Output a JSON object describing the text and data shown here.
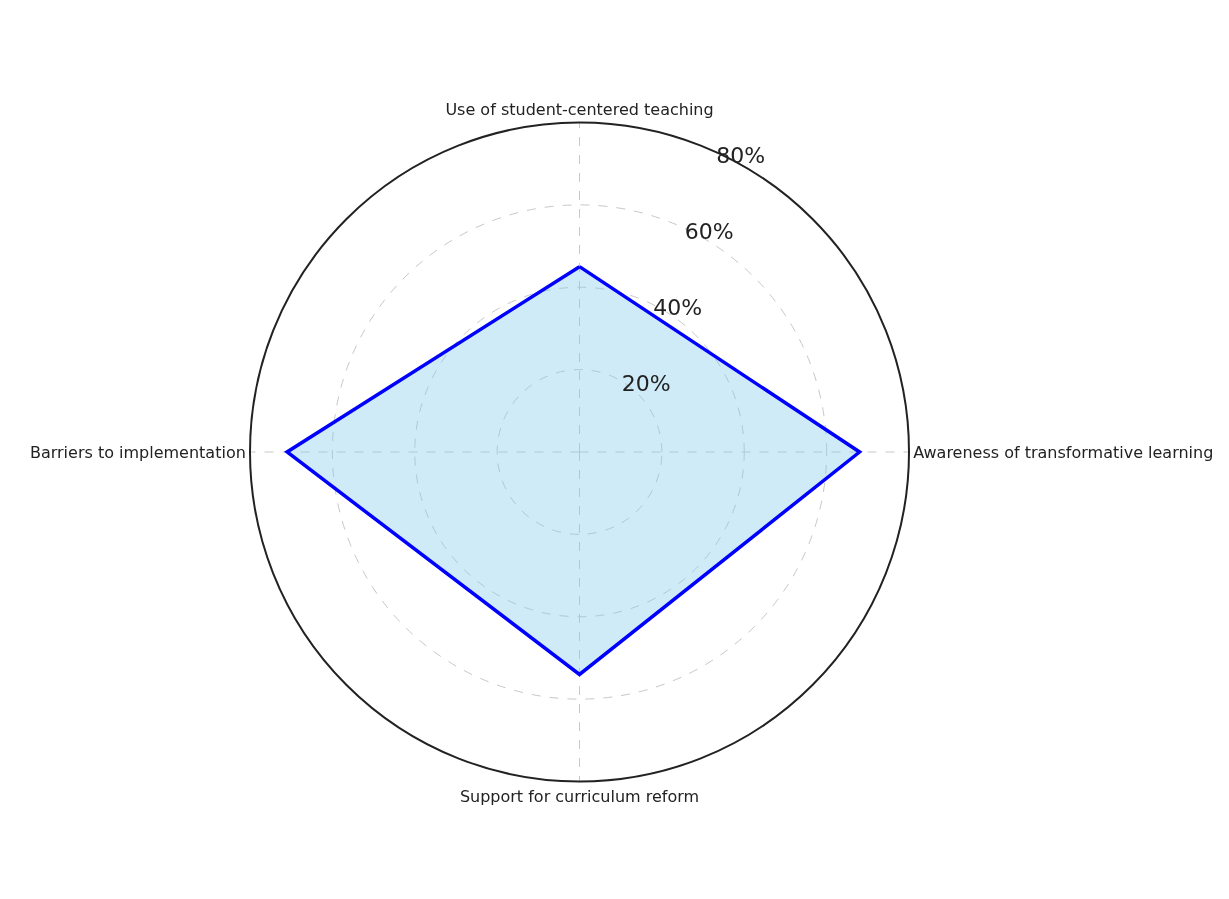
{
  "chart_data": {
    "type": "radar",
    "categories": [
      "Use of student-centered teaching",
      "Awareness of transformative learning",
      "Support for curriculum reform",
      "Barriers to implementation"
    ],
    "series": [
      {
        "color": "#0000ff",
        "values": [
          45,
          68,
          54,
          71
        ]
      }
    ],
    "ylim": [
      0,
      80
    ],
    "yticks": [
      {
        "value": 20,
        "label": "20%"
      },
      {
        "value": 40,
        "label": "40%"
      },
      {
        "value": 60,
        "label": "60%"
      },
      {
        "value": 80,
        "label": "80%"
      }
    ],
    "grid": true,
    "marker": "none",
    "line_style": "solid"
  }
}
